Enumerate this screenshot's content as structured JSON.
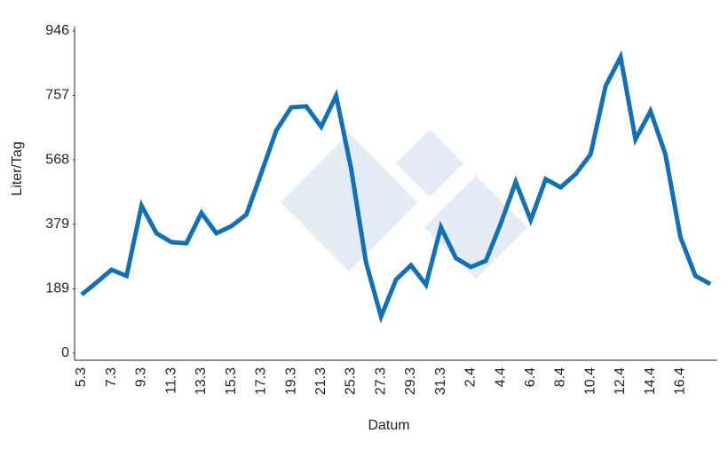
{
  "chart_data": {
    "type": "line",
    "xlabel": "Datum",
    "ylabel": "Liter/Tag",
    "categories": [
      "5.3",
      null,
      "7.3",
      null,
      "9.3",
      null,
      "11.3",
      null,
      "13.3",
      null,
      "15.3",
      null,
      "17.3",
      null,
      "19.3",
      null,
      "21.3",
      null,
      "25.3",
      null,
      "27.3",
      null,
      "29.3",
      null,
      "31.3",
      null,
      "2.4",
      null,
      "4.4",
      null,
      "6.4",
      null,
      "8.4",
      null,
      "10.4",
      null,
      "12.4",
      null,
      "14.4",
      null,
      "16.4",
      null,
      null
    ],
    "values": [
      172,
      208,
      245,
      227,
      433,
      352,
      326,
      323,
      412,
      352,
      373,
      407,
      529,
      654,
      722,
      725,
      665,
      756,
      542,
      266,
      107,
      216,
      258,
      201,
      370,
      279,
      253,
      271,
      381,
      503,
      391,
      511,
      487,
      526,
      584,
      784,
      870,
      628,
      711,
      584,
      341,
      227,
      203
    ],
    "color": "#1170b6",
    "ylim": [
      0,
      946
    ],
    "yticks": [
      0,
      189,
      379,
      568,
      757,
      946
    ]
  }
}
